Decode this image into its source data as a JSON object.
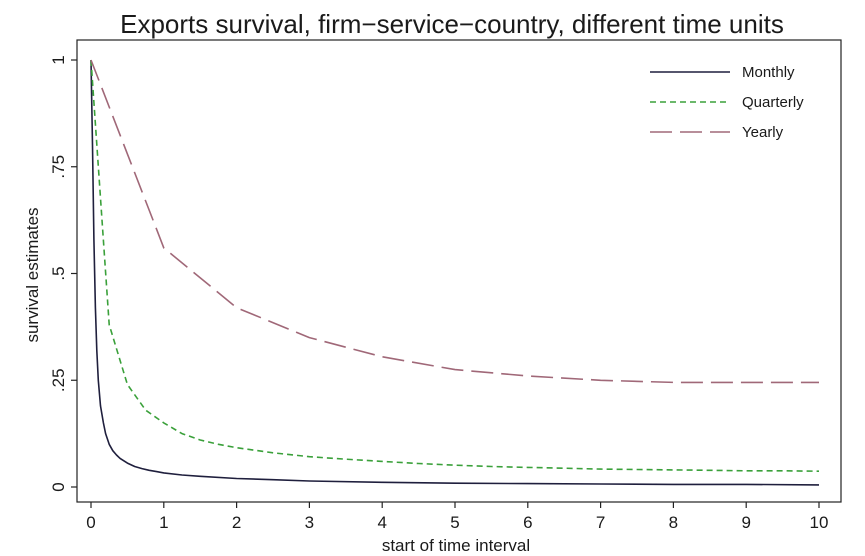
{
  "chart_data": {
    "type": "line",
    "title": "Exports survival, firm−service−country, different time units",
    "xlabel": "start of time interval",
    "ylabel": "survival estimates",
    "xlim": [
      0,
      10
    ],
    "ylim": [
      0,
      1
    ],
    "x_ticks": [
      0,
      1,
      2,
      3,
      4,
      5,
      6,
      7,
      8,
      9,
      10
    ],
    "x_tick_labels": [
      "0",
      "1",
      "2",
      "3",
      "4",
      "5",
      "6",
      "7",
      "8",
      "9",
      "10"
    ],
    "y_ticks": [
      0,
      0.25,
      0.5,
      0.75,
      1
    ],
    "y_tick_labels": [
      "0",
      ".25",
      ".5",
      ".75",
      "1"
    ],
    "grid": false,
    "legend_position": "top-right",
    "series": [
      {
        "name": "Monthly",
        "color": "#1f1f3d",
        "dash": "solid",
        "x": [
          0,
          0.02,
          0.04,
          0.06,
          0.08,
          0.1,
          0.13,
          0.17,
          0.2,
          0.25,
          0.3,
          0.35,
          0.4,
          0.5,
          0.6,
          0.7,
          0.8,
          0.9,
          1,
          1.25,
          1.5,
          2,
          2.5,
          3,
          4,
          5,
          6,
          7,
          8,
          9,
          10
        ],
        "y": [
          1,
          0.8,
          0.58,
          0.42,
          0.32,
          0.25,
          0.19,
          0.15,
          0.125,
          0.1,
          0.085,
          0.075,
          0.067,
          0.056,
          0.048,
          0.043,
          0.039,
          0.036,
          0.033,
          0.028,
          0.025,
          0.02,
          0.017,
          0.014,
          0.011,
          0.009,
          0.008,
          0.007,
          0.006,
          0.006,
          0.005
        ]
      },
      {
        "name": "Quarterly",
        "color": "#3aa03a",
        "dash": "short-dash",
        "x": [
          0,
          0.25,
          0.5,
          0.75,
          1,
          1.25,
          1.5,
          1.75,
          2,
          2.5,
          3,
          3.5,
          4,
          4.5,
          5,
          5.5,
          6,
          6.5,
          7,
          7.5,
          8,
          8.5,
          9,
          9.5,
          10
        ],
        "y": [
          1,
          0.38,
          0.24,
          0.18,
          0.15,
          0.125,
          0.11,
          0.1,
          0.092,
          0.08,
          0.071,
          0.065,
          0.06,
          0.055,
          0.051,
          0.048,
          0.046,
          0.044,
          0.042,
          0.041,
          0.04,
          0.039,
          0.038,
          0.038,
          0.037
        ]
      },
      {
        "name": "Yearly",
        "color": "#a06878",
        "dash": "long-dash",
        "x": [
          0,
          1,
          2,
          3,
          4,
          5,
          6,
          7,
          8,
          9,
          10
        ],
        "y": [
          1,
          0.56,
          0.42,
          0.35,
          0.305,
          0.275,
          0.26,
          0.25,
          0.245,
          0.245,
          0.245
        ]
      }
    ]
  }
}
